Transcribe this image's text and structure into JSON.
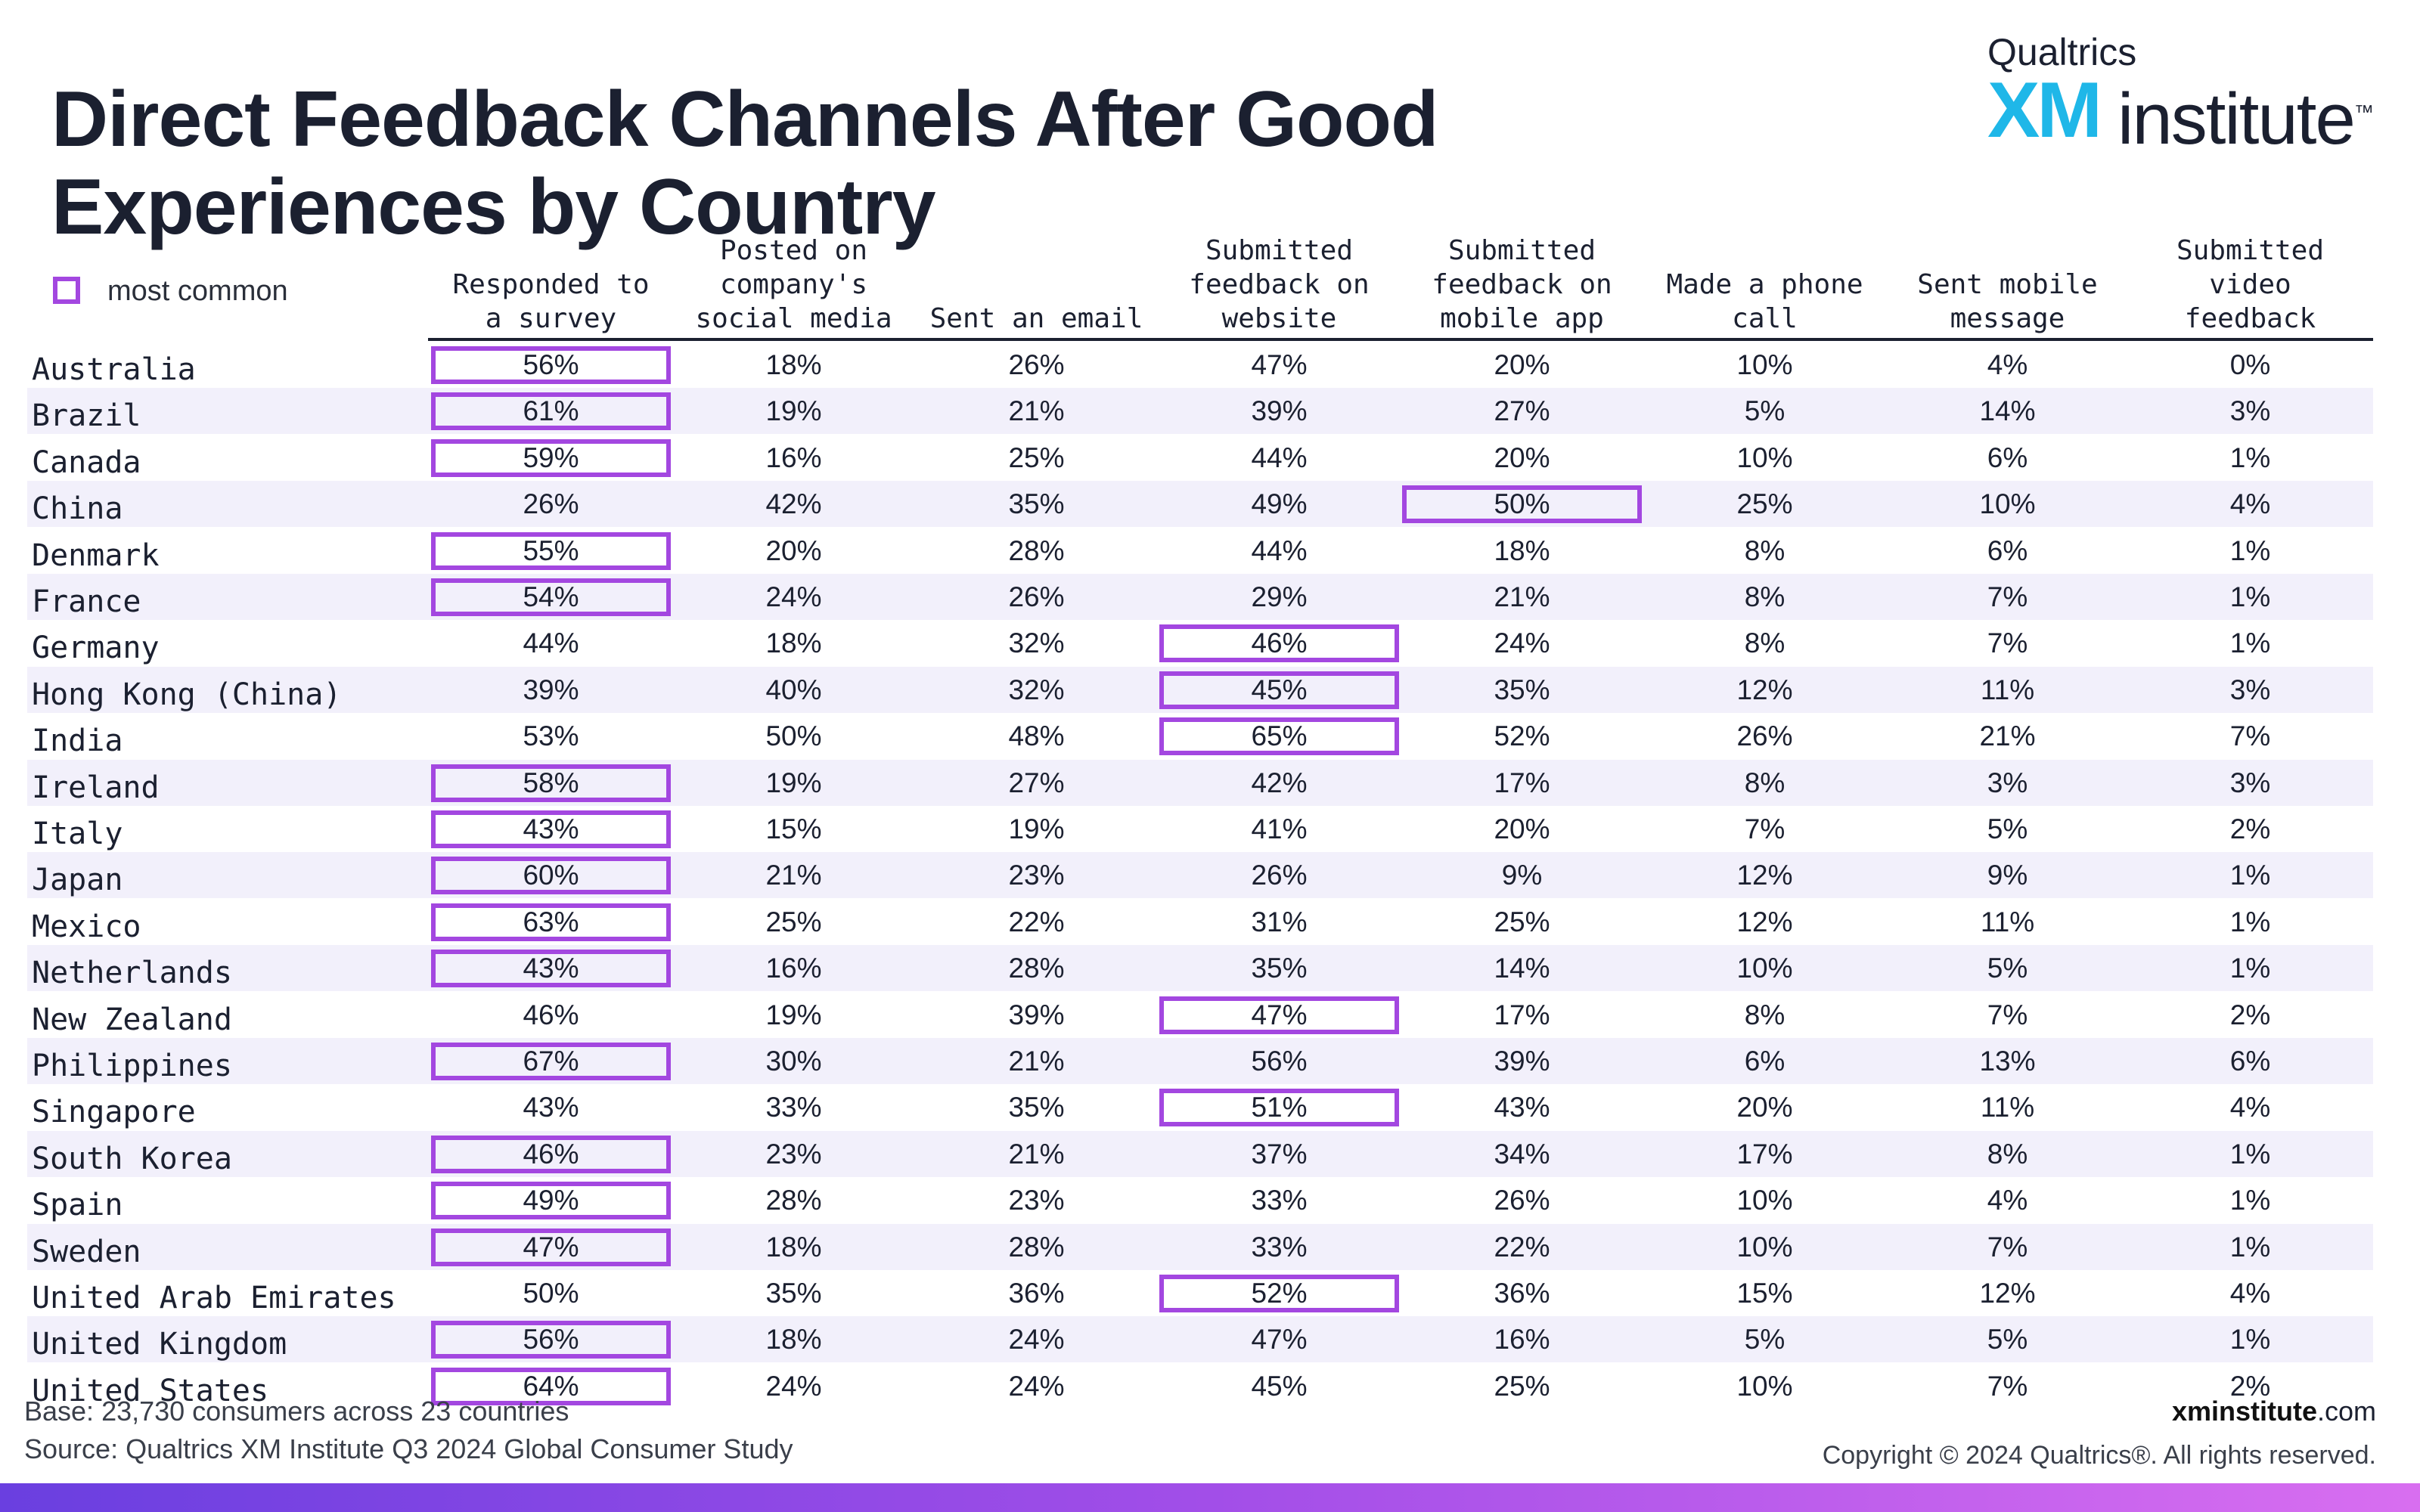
{
  "title": "Direct Feedback Channels After Good Experiences by Country",
  "logo": {
    "top": "Qualtrics",
    "xm": "XM",
    "word": "institute",
    "tm": "™"
  },
  "legend": {
    "label": "most common",
    "color": "#a347e0"
  },
  "footer": {
    "base_label": "Base:",
    "base_text": " 23,730 consumers across 23 countries",
    "source_label": "Source:",
    "source_text": " Qualtrics XM Institute Q3 2024 Global Consumer Study",
    "site_bold": "xminstitute",
    "site_rest": ".com",
    "copyright": "Copyright © 2024 Qualtrics®. All rights reserved."
  },
  "chart_data": {
    "type": "table",
    "title": "Direct Feedback Channels After Good Experiences by Country",
    "columns": [
      "Responded to\na survey",
      "Posted on\ncompany's\nsocial media",
      "Sent an email",
      "Submitted\nfeedback on\nwebsite",
      "Submitted\nfeedback on\nmobile app",
      "Made a phone\ncall",
      "Sent mobile\nmessage",
      "Submitted\nvideo\nfeedback"
    ],
    "rows": [
      {
        "country": "Australia",
        "values": [
          "56%",
          "18%",
          "26%",
          "47%",
          "20%",
          "10%",
          "4%",
          "0%"
        ],
        "highlight": 0
      },
      {
        "country": "Brazil",
        "values": [
          "61%",
          "19%",
          "21%",
          "39%",
          "27%",
          "5%",
          "14%",
          "3%"
        ],
        "highlight": 0
      },
      {
        "country": "Canada",
        "values": [
          "59%",
          "16%",
          "25%",
          "44%",
          "20%",
          "10%",
          "6%",
          "1%"
        ],
        "highlight": 0
      },
      {
        "country": "China",
        "values": [
          "26%",
          "42%",
          "35%",
          "49%",
          "50%",
          "25%",
          "10%",
          "4%"
        ],
        "highlight": 4
      },
      {
        "country": "Denmark",
        "values": [
          "55%",
          "20%",
          "28%",
          "44%",
          "18%",
          "8%",
          "6%",
          "1%"
        ],
        "highlight": 0
      },
      {
        "country": "France",
        "values": [
          "54%",
          "24%",
          "26%",
          "29%",
          "21%",
          "8%",
          "7%",
          "1%"
        ],
        "highlight": 0
      },
      {
        "country": "Germany",
        "values": [
          "44%",
          "18%",
          "32%",
          "46%",
          "24%",
          "8%",
          "7%",
          "1%"
        ],
        "highlight": 3
      },
      {
        "country": "Hong Kong (China)",
        "values": [
          "39%",
          "40%",
          "32%",
          "45%",
          "35%",
          "12%",
          "11%",
          "3%"
        ],
        "highlight": 3
      },
      {
        "country": "India",
        "values": [
          "53%",
          "50%",
          "48%",
          "65%",
          "52%",
          "26%",
          "21%",
          "7%"
        ],
        "highlight": 3
      },
      {
        "country": "Ireland",
        "values": [
          "58%",
          "19%",
          "27%",
          "42%",
          "17%",
          "8%",
          "3%",
          "3%"
        ],
        "highlight": 0
      },
      {
        "country": "Italy",
        "values": [
          "43%",
          "15%",
          "19%",
          "41%",
          "20%",
          "7%",
          "5%",
          "2%"
        ],
        "highlight": 0
      },
      {
        "country": "Japan",
        "values": [
          "60%",
          "21%",
          "23%",
          "26%",
          "9%",
          "12%",
          "9%",
          "1%"
        ],
        "highlight": 0
      },
      {
        "country": "Mexico",
        "values": [
          "63%",
          "25%",
          "22%",
          "31%",
          "25%",
          "12%",
          "11%",
          "1%"
        ],
        "highlight": 0
      },
      {
        "country": "Netherlands",
        "values": [
          "43%",
          "16%",
          "28%",
          "35%",
          "14%",
          "10%",
          "5%",
          "1%"
        ],
        "highlight": 0
      },
      {
        "country": "New Zealand",
        "values": [
          "46%",
          "19%",
          "39%",
          "47%",
          "17%",
          "8%",
          "7%",
          "2%"
        ],
        "highlight": 3
      },
      {
        "country": "Philippines",
        "values": [
          "67%",
          "30%",
          "21%",
          "56%",
          "39%",
          "6%",
          "13%",
          "6%"
        ],
        "highlight": 0
      },
      {
        "country": "Singapore",
        "values": [
          "43%",
          "33%",
          "35%",
          "51%",
          "43%",
          "20%",
          "11%",
          "4%"
        ],
        "highlight": 3
      },
      {
        "country": "South Korea",
        "values": [
          "46%",
          "23%",
          "21%",
          "37%",
          "34%",
          "17%",
          "8%",
          "1%"
        ],
        "highlight": 0
      },
      {
        "country": "Spain",
        "values": [
          "49%",
          "28%",
          "23%",
          "33%",
          "26%",
          "10%",
          "4%",
          "1%"
        ],
        "highlight": 0
      },
      {
        "country": "Sweden",
        "values": [
          "47%",
          "18%",
          "28%",
          "33%",
          "22%",
          "10%",
          "7%",
          "1%"
        ],
        "highlight": 0
      },
      {
        "country": "United Arab Emirates",
        "values": [
          "50%",
          "35%",
          "36%",
          "52%",
          "36%",
          "15%",
          "12%",
          "4%"
        ],
        "highlight": 3
      },
      {
        "country": "United Kingdom",
        "values": [
          "56%",
          "18%",
          "24%",
          "47%",
          "16%",
          "5%",
          "5%",
          "1%"
        ],
        "highlight": 0
      },
      {
        "country": "United States",
        "values": [
          "64%",
          "24%",
          "24%",
          "45%",
          "25%",
          "10%",
          "7%",
          "2%"
        ],
        "highlight": 0
      }
    ]
  }
}
